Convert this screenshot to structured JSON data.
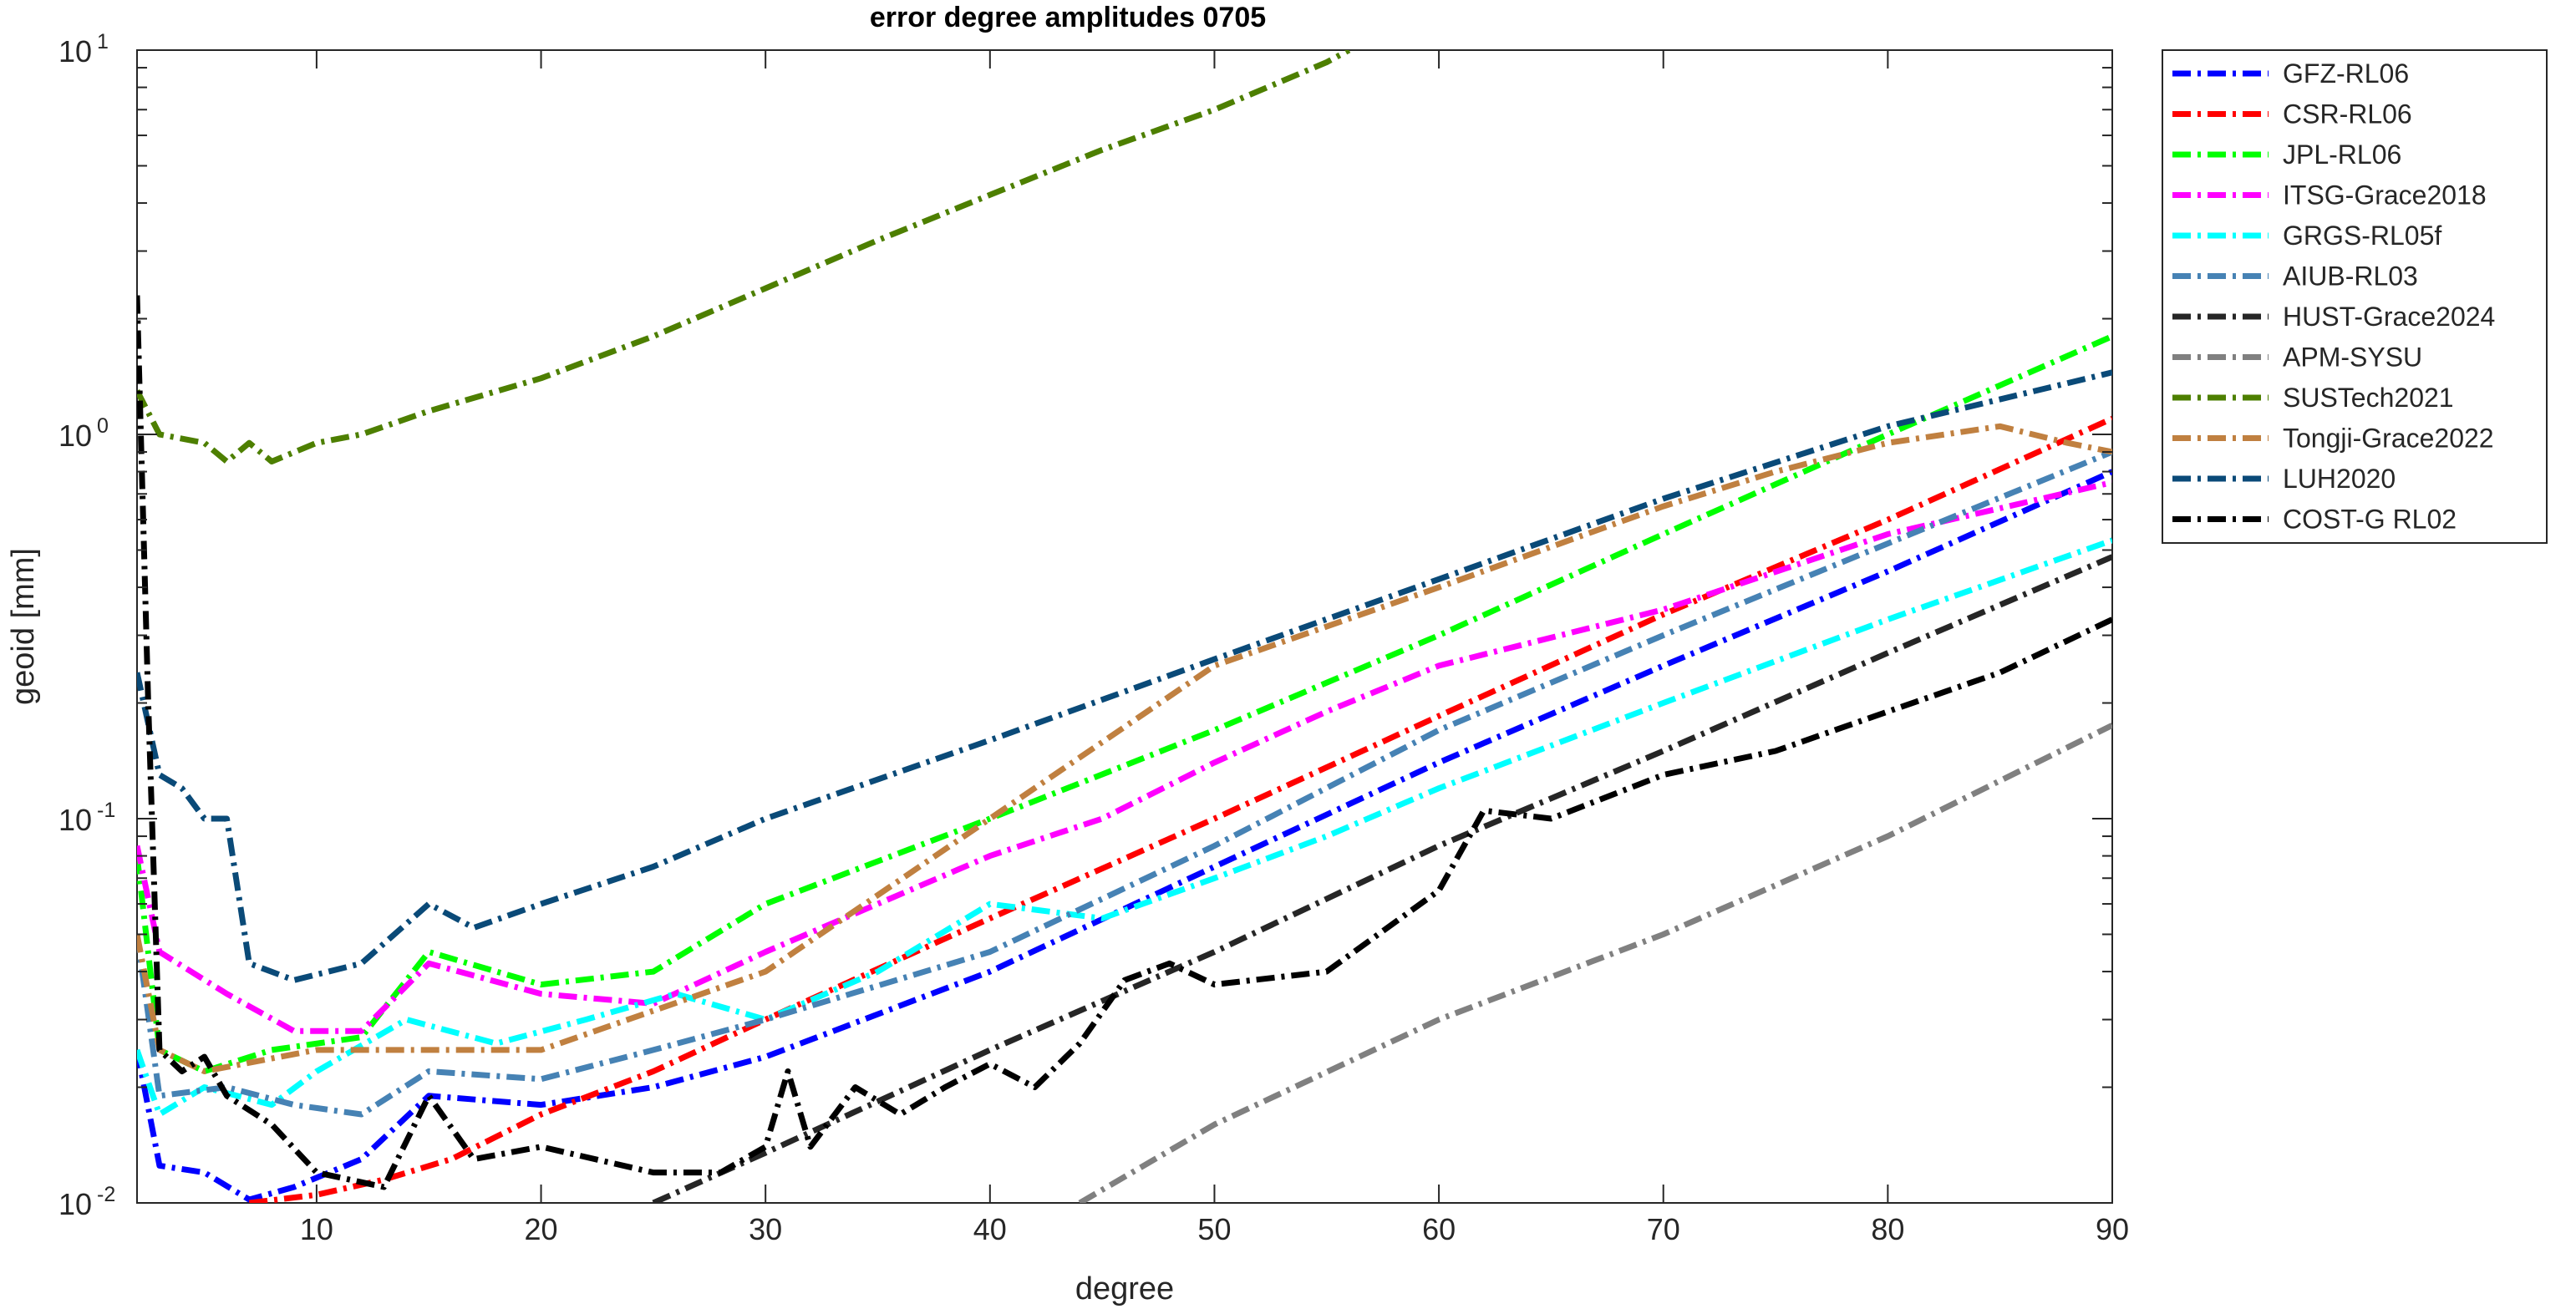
{
  "chart_data": {
    "type": "line",
    "title": "error degree amplitudes 0705",
    "xlabel": "degree",
    "ylabel": "geoid [mm]",
    "xlim": [
      2,
      90
    ],
    "ylim": [
      0.01,
      10
    ],
    "yscale": "log",
    "grid": false,
    "legend_position": "outside-top-right",
    "x_ticks": [
      10,
      20,
      30,
      40,
      50,
      60,
      70,
      80,
      90
    ],
    "y_ticks": [
      {
        "value": 0.01,
        "base": "10",
        "exp": "-2"
      },
      {
        "value": 0.1,
        "base": "10",
        "exp": "-1"
      },
      {
        "value": 1,
        "base": "10",
        "exp": "0"
      },
      {
        "value": 10,
        "base": "10",
        "exp": "1"
      }
    ],
    "series": [
      {
        "name": "GFZ-RL06",
        "color": "#0000ff",
        "points": [
          [
            2,
            0.025
          ],
          [
            3,
            0.0125
          ],
          [
            5,
            0.012
          ],
          [
            7,
            0.0102
          ],
          [
            9,
            0.011
          ],
          [
            12,
            0.013
          ],
          [
            15,
            0.019
          ],
          [
            20,
            0.018
          ],
          [
            25,
            0.02
          ],
          [
            30,
            0.024
          ],
          [
            40,
            0.04
          ],
          [
            50,
            0.075
          ],
          [
            60,
            0.14
          ],
          [
            70,
            0.25
          ],
          [
            80,
            0.44
          ],
          [
            90,
            0.8
          ]
        ]
      },
      {
        "name": "CSR-RL06",
        "color": "#ff0000",
        "points": [
          [
            7,
            0.01
          ],
          [
            10,
            0.0105
          ],
          [
            13,
            0.0115
          ],
          [
            16,
            0.013
          ],
          [
            20,
            0.017
          ],
          [
            25,
            0.022
          ],
          [
            30,
            0.03
          ],
          [
            40,
            0.055
          ],
          [
            50,
            0.1
          ],
          [
            60,
            0.185
          ],
          [
            70,
            0.34
          ],
          [
            80,
            0.6
          ],
          [
            90,
            1.1
          ]
        ]
      },
      {
        "name": "JPL-RL06",
        "color": "#00ff00",
        "points": [
          [
            2,
            0.08
          ],
          [
            3,
            0.025
          ],
          [
            5,
            0.022
          ],
          [
            8,
            0.025
          ],
          [
            12,
            0.027
          ],
          [
            15,
            0.045
          ],
          [
            20,
            0.037
          ],
          [
            25,
            0.04
          ],
          [
            30,
            0.06
          ],
          [
            40,
            0.1
          ],
          [
            50,
            0.17
          ],
          [
            60,
            0.3
          ],
          [
            70,
            0.55
          ],
          [
            80,
            1.0
          ],
          [
            90,
            1.8
          ]
        ]
      },
      {
        "name": "ITSG-Grace2018",
        "color": "#ff00ff",
        "points": [
          [
            2,
            0.085
          ],
          [
            3,
            0.045
          ],
          [
            6,
            0.035
          ],
          [
            9,
            0.028
          ],
          [
            12,
            0.028
          ],
          [
            15,
            0.042
          ],
          [
            20,
            0.035
          ],
          [
            25,
            0.033
          ],
          [
            30,
            0.045
          ],
          [
            40,
            0.08
          ],
          [
            45,
            0.1
          ],
          [
            50,
            0.14
          ],
          [
            55,
            0.19
          ],
          [
            60,
            0.25
          ],
          [
            70,
            0.35
          ],
          [
            80,
            0.55
          ],
          [
            90,
            0.75
          ]
        ]
      },
      {
        "name": "GRGS-RL05f",
        "color": "#00ffff",
        "points": [
          [
            2,
            0.025
          ],
          [
            3,
            0.017
          ],
          [
            5,
            0.02
          ],
          [
            8,
            0.018
          ],
          [
            10,
            0.022
          ],
          [
            14,
            0.03
          ],
          [
            18,
            0.026
          ],
          [
            22,
            0.03
          ],
          [
            26,
            0.035
          ],
          [
            30,
            0.03
          ],
          [
            35,
            0.04
          ],
          [
            40,
            0.06
          ],
          [
            45,
            0.055
          ],
          [
            50,
            0.07
          ],
          [
            55,
            0.09
          ],
          [
            60,
            0.12
          ],
          [
            70,
            0.2
          ],
          [
            80,
            0.33
          ],
          [
            90,
            0.53
          ]
        ]
      },
      {
        "name": "AIUB-RL03",
        "color": "#4682b4",
        "points": [
          [
            2,
            0.05
          ],
          [
            3,
            0.019
          ],
          [
            6,
            0.02
          ],
          [
            9,
            0.018
          ],
          [
            12,
            0.017
          ],
          [
            15,
            0.022
          ],
          [
            20,
            0.021
          ],
          [
            25,
            0.025
          ],
          [
            30,
            0.03
          ],
          [
            40,
            0.045
          ],
          [
            50,
            0.085
          ],
          [
            60,
            0.17
          ],
          [
            70,
            0.3
          ],
          [
            80,
            0.52
          ],
          [
            90,
            0.9
          ]
        ]
      },
      {
        "name": "HUST-Grace2024",
        "color": "#262626",
        "points": [
          [
            25,
            0.01
          ],
          [
            30,
            0.0135
          ],
          [
            40,
            0.025
          ],
          [
            50,
            0.045
          ],
          [
            60,
            0.085
          ],
          [
            70,
            0.15
          ],
          [
            80,
            0.27
          ],
          [
            90,
            0.48
          ]
        ]
      },
      {
        "name": "APM-SYSU",
        "color": "#808080",
        "points": [
          [
            44,
            0.01
          ],
          [
            50,
            0.016
          ],
          [
            60,
            0.03
          ],
          [
            70,
            0.05
          ],
          [
            80,
            0.09
          ],
          [
            90,
            0.175
          ]
        ]
      },
      {
        "name": "SUSTech2021",
        "color": "#4d7f00",
        "points": [
          [
            2,
            1.3
          ],
          [
            3,
            1.0
          ],
          [
            5,
            0.95
          ],
          [
            6,
            0.85
          ],
          [
            7,
            0.95
          ],
          [
            8,
            0.85
          ],
          [
            10,
            0.95
          ],
          [
            12,
            1.0
          ],
          [
            15,
            1.15
          ],
          [
            20,
            1.4
          ],
          [
            25,
            1.8
          ],
          [
            30,
            2.4
          ],
          [
            35,
            3.2
          ],
          [
            40,
            4.2
          ],
          [
            45,
            5.5
          ],
          [
            50,
            7.0
          ],
          [
            55,
            9.3
          ],
          [
            56,
            10
          ]
        ]
      },
      {
        "name": "Tongji-Grace2022",
        "color": "#c08040",
        "points": [
          [
            2,
            0.05
          ],
          [
            3,
            0.025
          ],
          [
            5,
            0.022
          ],
          [
            10,
            0.025
          ],
          [
            20,
            0.025
          ],
          [
            30,
            0.04
          ],
          [
            40,
            0.1
          ],
          [
            50,
            0.25
          ],
          [
            60,
            0.4
          ],
          [
            70,
            0.65
          ],
          [
            75,
            0.8
          ],
          [
            80,
            0.95
          ],
          [
            85,
            1.05
          ],
          [
            88,
            0.95
          ],
          [
            90,
            0.9
          ]
        ]
      },
      {
        "name": "LUH2020",
        "color": "#0a4a78",
        "points": [
          [
            2,
            0.24
          ],
          [
            3,
            0.13
          ],
          [
            4,
            0.12
          ],
          [
            5,
            0.1
          ],
          [
            6,
            0.1
          ],
          [
            7,
            0.042
          ],
          [
            9,
            0.038
          ],
          [
            12,
            0.042
          ],
          [
            15,
            0.06
          ],
          [
            17,
            0.052
          ],
          [
            20,
            0.06
          ],
          [
            25,
            0.075
          ],
          [
            30,
            0.1
          ],
          [
            40,
            0.16
          ],
          [
            50,
            0.26
          ],
          [
            60,
            0.42
          ],
          [
            70,
            0.68
          ],
          [
            80,
            1.05
          ],
          [
            90,
            1.45
          ]
        ]
      },
      {
        "name": "COST-G RL02",
        "color": "#000000",
        "points": [
          [
            2,
            2.3
          ],
          [
            2.5,
            0.2
          ],
          [
            3,
            0.025
          ],
          [
            4,
            0.022
          ],
          [
            5,
            0.024
          ],
          [
            6,
            0.019
          ],
          [
            8,
            0.016
          ],
          [
            10,
            0.012
          ],
          [
            13,
            0.011
          ],
          [
            15,
            0.019
          ],
          [
            17,
            0.013
          ],
          [
            20,
            0.014
          ],
          [
            25,
            0.012
          ],
          [
            28,
            0.012
          ],
          [
            30,
            0.014
          ],
          [
            31,
            0.022
          ],
          [
            32,
            0.014
          ],
          [
            34,
            0.02
          ],
          [
            36,
            0.017
          ],
          [
            38,
            0.02
          ],
          [
            40,
            0.023
          ],
          [
            42,
            0.02
          ],
          [
            44,
            0.026
          ],
          [
            46,
            0.038
          ],
          [
            48,
            0.042
          ],
          [
            50,
            0.037
          ],
          [
            55,
            0.04
          ],
          [
            60,
            0.065
          ],
          [
            62,
            0.105
          ],
          [
            65,
            0.1
          ],
          [
            70,
            0.13
          ],
          [
            75,
            0.15
          ],
          [
            80,
            0.19
          ],
          [
            85,
            0.24
          ],
          [
            90,
            0.33
          ]
        ]
      }
    ]
  }
}
